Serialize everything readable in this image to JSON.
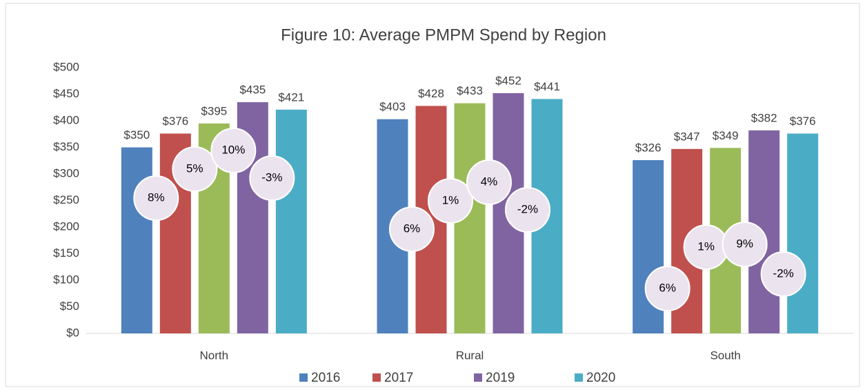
{
  "chart_data": {
    "type": "bar",
    "title": "Figure 10: Average PMPM Spend by Region",
    "categories": [
      "North",
      "Rural",
      "South"
    ],
    "series": [
      {
        "name": "2016",
        "color": "#4f81bd",
        "values": [
          350,
          403,
          326
        ],
        "value_labels": [
          "$350",
          "$403",
          "$326"
        ]
      },
      {
        "name": "2017",
        "color": "#c0504d",
        "values": [
          376,
          428,
          347
        ],
        "value_labels": [
          "$376",
          "$428",
          "$347"
        ]
      },
      {
        "color": "#9bbb59",
        "values": [
          395,
          433,
          349
        ],
        "value_labels": [
          "$395",
          "$433",
          "$349"
        ]
      },
      {
        "name": "2019",
        "color": "#8064a2",
        "values": [
          435,
          452,
          382
        ],
        "value_labels": [
          "$435",
          "$452",
          "$382"
        ]
      },
      {
        "name": "2020",
        "color": "#4bacc6",
        "values": [
          421,
          441,
          376
        ],
        "value_labels": [
          "$421",
          "$441",
          "$376"
        ]
      }
    ],
    "annotations": [
      [
        "8%",
        "5%",
        "10%",
        "-3%"
      ],
      [
        "6%",
        "1%",
        "4%",
        "-2%"
      ],
      [
        "6%",
        "1%",
        "9%",
        "-2%"
      ]
    ],
    "ylim": [
      0,
      500
    ],
    "yticks": [
      {
        "value": 0,
        "label": "$0"
      },
      {
        "value": 50,
        "label": "$50"
      },
      {
        "value": 100,
        "label": "$100"
      },
      {
        "value": 150,
        "label": "$150"
      },
      {
        "value": 200,
        "label": "$200"
      },
      {
        "value": 250,
        "label": "$250"
      },
      {
        "value": 300,
        "label": "$300"
      },
      {
        "value": 350,
        "label": "$350"
      },
      {
        "value": 400,
        "label": "$400"
      },
      {
        "value": 450,
        "label": "$450"
      },
      {
        "value": 500,
        "label": "$500"
      }
    ],
    "grid": false,
    "legend": "bottom"
  }
}
